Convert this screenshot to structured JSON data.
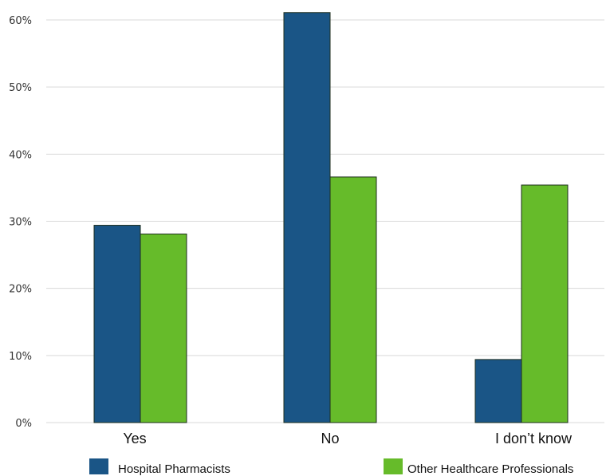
{
  "chart_data": {
    "type": "bar",
    "categories": [
      "Yes",
      "No",
      "I don’t know"
    ],
    "series": [
      {
        "name": "Hospital Pharmacists",
        "values": [
          29.4,
          61.1,
          9.4
        ],
        "color": "#1a5586"
      },
      {
        "name": "Other Healthcare Professionals",
        "values": [
          28.1,
          36.6,
          35.4
        ],
        "color": "#66bb2a"
      }
    ],
    "y_ticks": [
      "0%",
      "10%",
      "20%",
      "30%",
      "40%",
      "50%",
      "60%"
    ],
    "ylim": [
      0,
      60
    ],
    "grid": true,
    "legend_position": "bottom",
    "title": "",
    "xlabel": "",
    "ylabel": ""
  }
}
